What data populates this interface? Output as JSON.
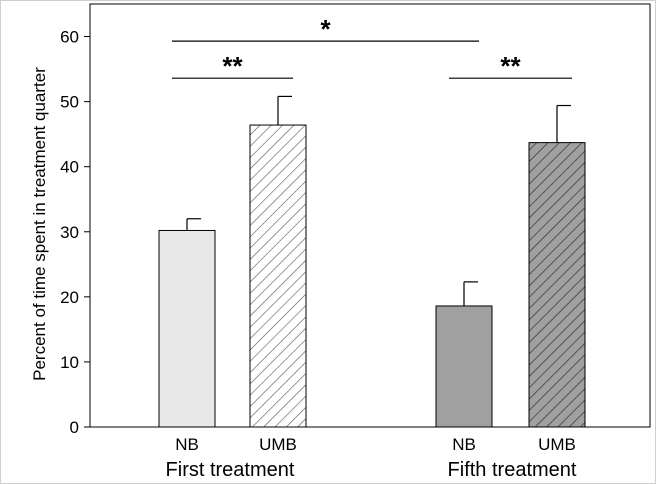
{
  "chart_data": {
    "type": "bar",
    "ylabel": "Percent of time spent in treatment quarter",
    "ylim": [
      0,
      65
    ],
    "yticks": [
      0,
      10,
      20,
      30,
      40,
      50,
      60
    ],
    "grid": false,
    "groups": [
      {
        "label": "First treatment",
        "bars": [
          {
            "category": "NB",
            "value": 30.2,
            "error": 1.8,
            "fill": "#e8e8e8",
            "hatch": false
          },
          {
            "category": "UMB",
            "value": 46.4,
            "error": 4.4,
            "fill": "#ffffff",
            "hatch": true
          }
        ]
      },
      {
        "label": "Fifth treatment",
        "bars": [
          {
            "category": "NB",
            "value": 18.6,
            "error": 3.7,
            "fill": "#a0a0a0",
            "hatch": false
          },
          {
            "category": "UMB",
            "value": 43.7,
            "error": 5.7,
            "fill": "#a0a0a0",
            "hatch": true
          }
        ]
      }
    ],
    "significance": [
      {
        "label": "**",
        "from": [
          0,
          0
        ],
        "to": [
          0,
          1
        ],
        "level": 53.6
      },
      {
        "label": "**",
        "from": [
          1,
          0
        ],
        "to": [
          1,
          1
        ],
        "level": 53.6
      },
      {
        "label": "*",
        "from": [
          0,
          0
        ],
        "to": [
          1,
          0
        ],
        "level": 59.3
      }
    ]
  }
}
